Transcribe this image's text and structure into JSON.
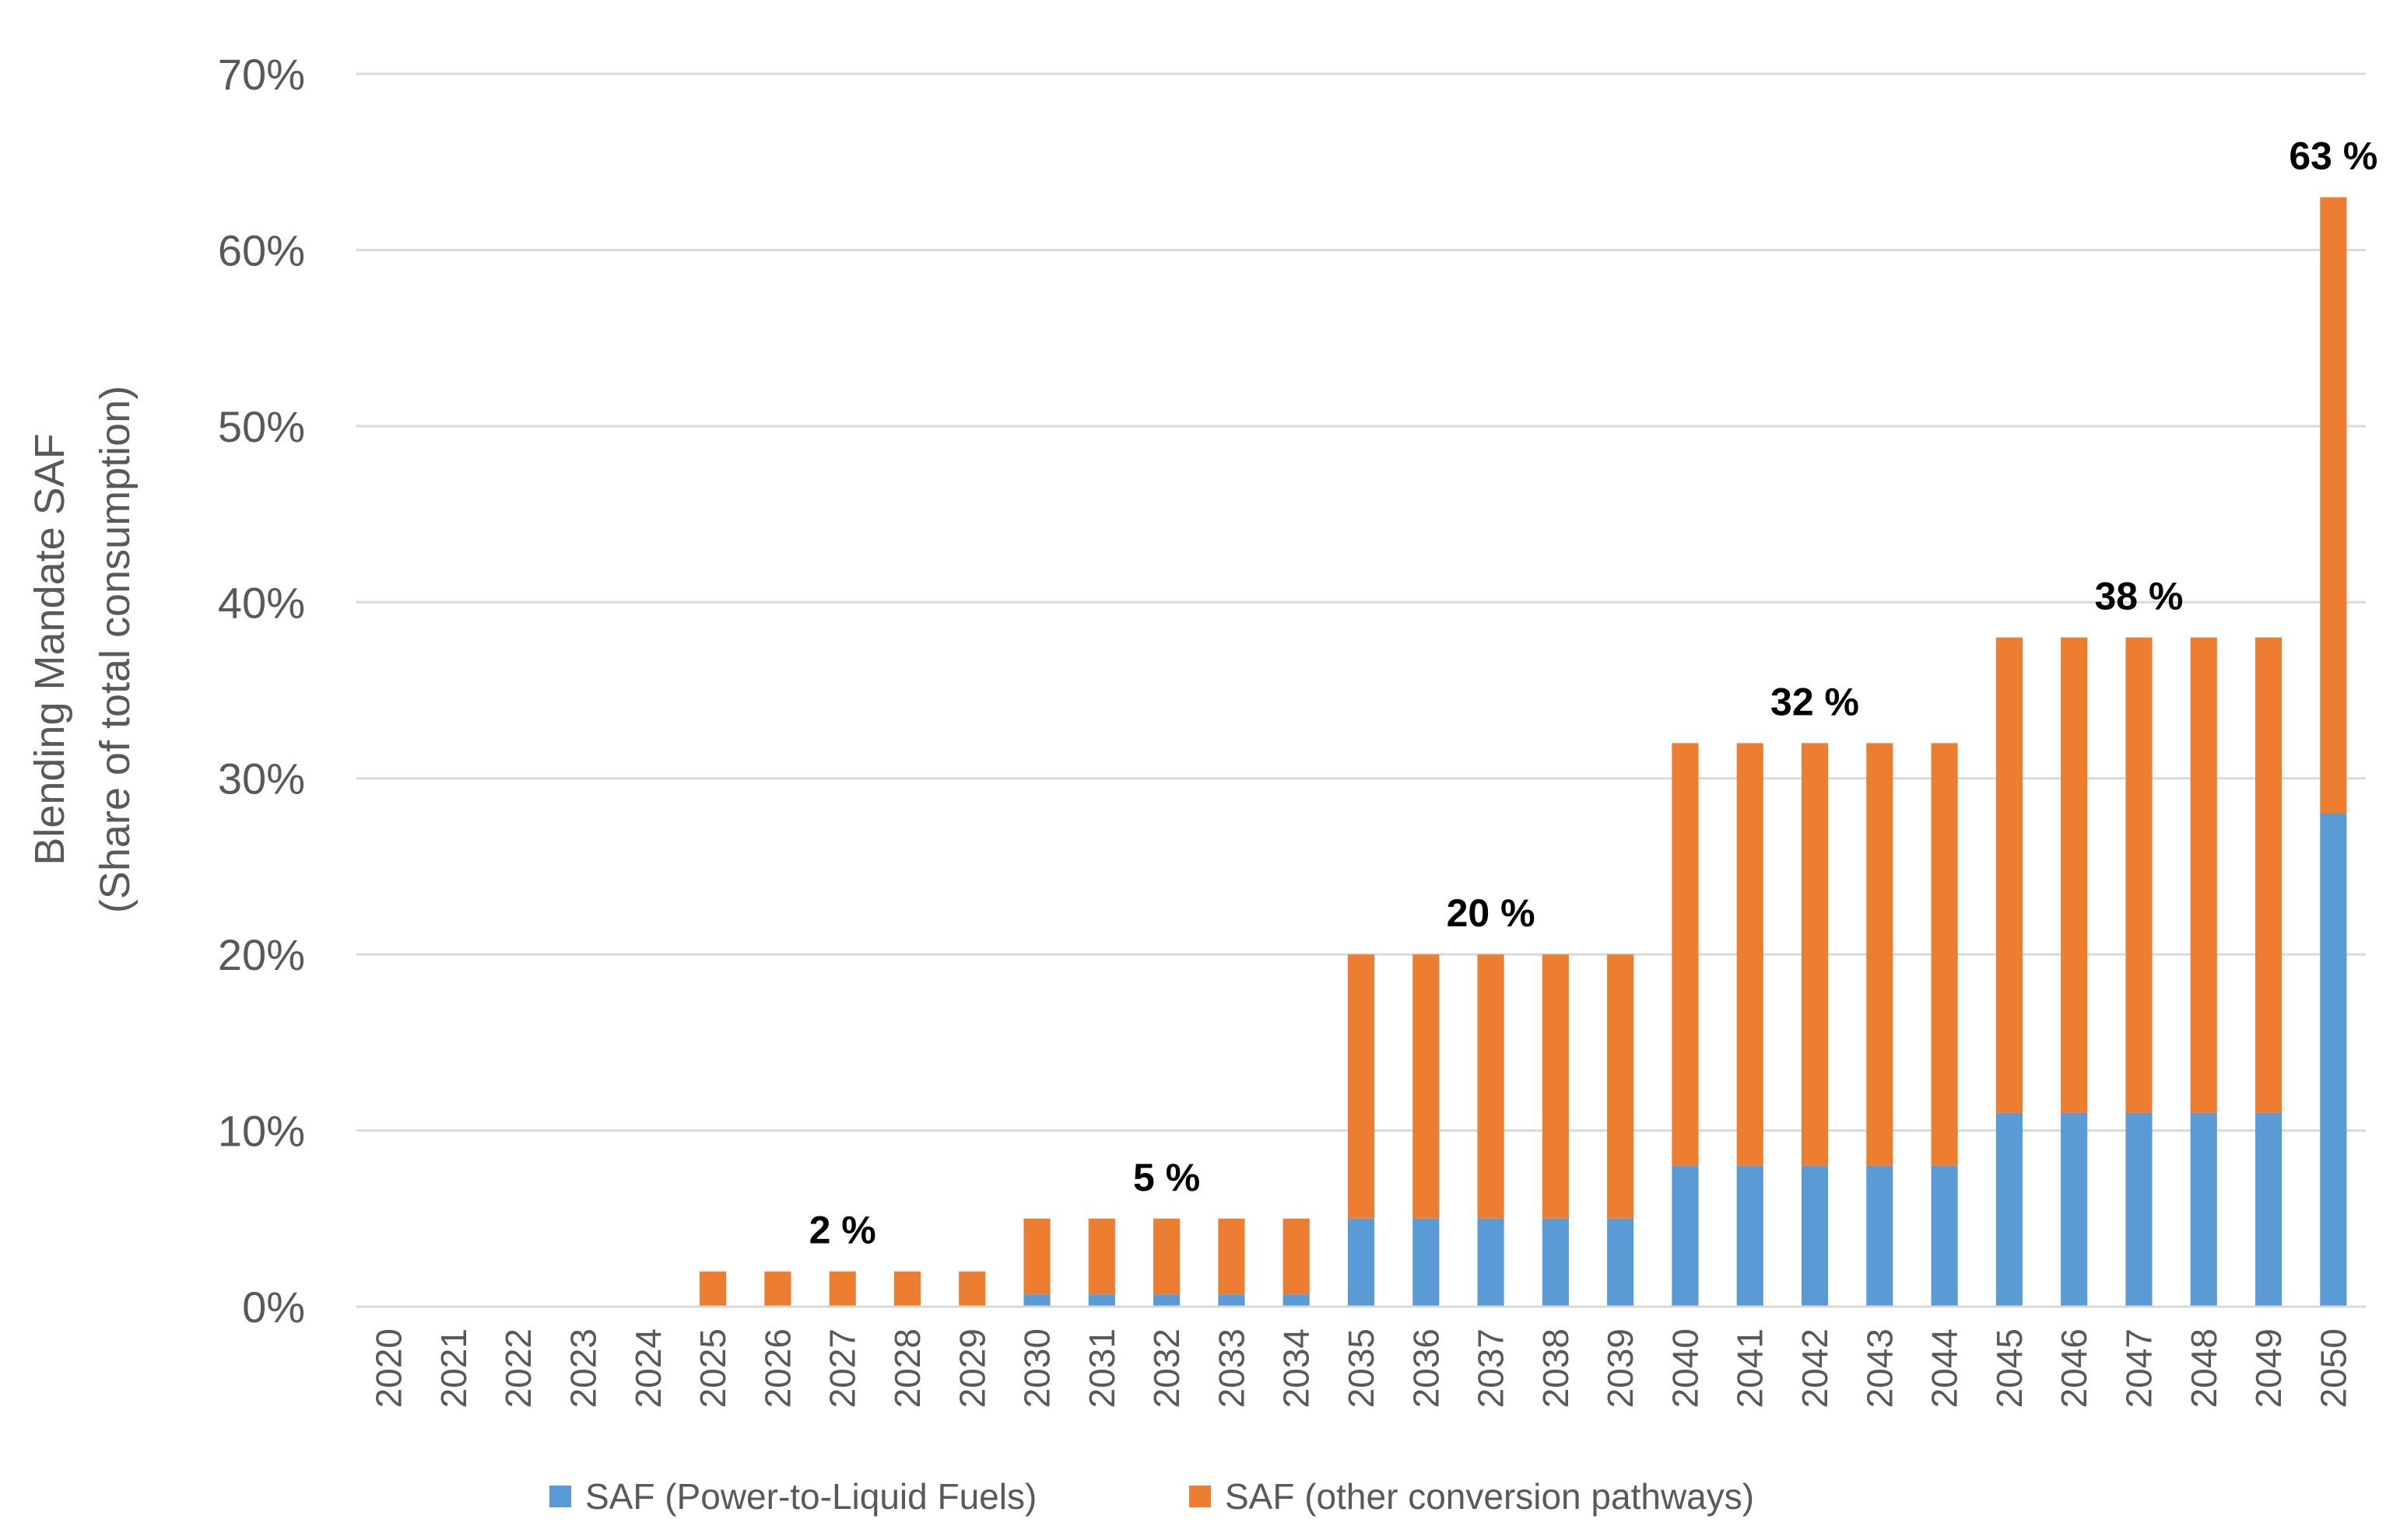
{
  "chart_data": {
    "type": "bar",
    "stacked": true,
    "categories": [
      "2020",
      "2021",
      "2022",
      "2023",
      "2024",
      "2025",
      "2026",
      "2027",
      "2028",
      "2029",
      "2030",
      "2031",
      "2032",
      "2033",
      "2034",
      "2035",
      "2036",
      "2037",
      "2038",
      "2039",
      "2040",
      "2041",
      "2042",
      "2043",
      "2044",
      "2045",
      "2046",
      "2047",
      "2048",
      "2049",
      "2050"
    ],
    "series": [
      {
        "name": "SAF (Power-to-Liquid Fuels)",
        "color": "#5B9BD5",
        "values": [
          0,
          0,
          0,
          0,
          0,
          0,
          0,
          0,
          0,
          0,
          0.7,
          0.7,
          0.7,
          0.7,
          0.7,
          5,
          5,
          5,
          5,
          5,
          8,
          8,
          8,
          8,
          8,
          11,
          11,
          11,
          11,
          11,
          28
        ]
      },
      {
        "name": "SAF (other conversion pathways)",
        "color": "#ED7D31",
        "values": [
          0,
          0,
          0,
          0,
          0,
          2,
          2,
          2,
          2,
          2,
          4.3,
          4.3,
          4.3,
          4.3,
          4.3,
          15,
          15,
          15,
          15,
          15,
          24,
          24,
          24,
          24,
          24,
          27,
          27,
          27,
          27,
          27,
          35
        ]
      }
    ],
    "ylim": [
      0,
      70
    ],
    "yticks": [
      0,
      10,
      20,
      30,
      40,
      50,
      60,
      70
    ],
    "ytick_labels": [
      "0%",
      "10%",
      "20%",
      "30%",
      "40%",
      "50%",
      "60%",
      "70%"
    ],
    "ylabel_line1": "Blending Mandate SAF",
    "ylabel_line2": "(Share of total consumption)",
    "xlabel": "",
    "grid": true,
    "legend_position": "bottom",
    "annotations": [
      {
        "text": "2 %",
        "category": "2027",
        "value": 2
      },
      {
        "text": "5 %",
        "category": "2032",
        "value": 5
      },
      {
        "text": "20 %",
        "category": "2037",
        "value": 20
      },
      {
        "text": "32 %",
        "category": "2042",
        "value": 32
      },
      {
        "text": "38 %",
        "category": "2047",
        "value": 38
      },
      {
        "text": "63 %",
        "category": "2050",
        "value": 63
      }
    ]
  }
}
